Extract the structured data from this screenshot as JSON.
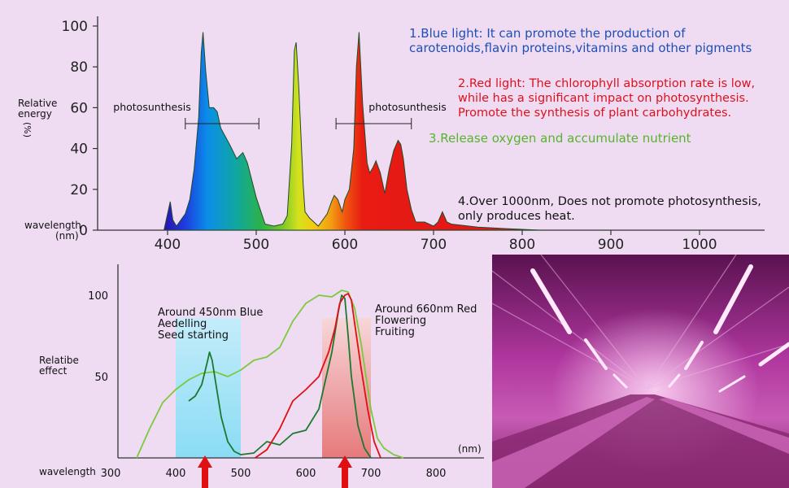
{
  "chart_data": [
    {
      "type": "area",
      "ylabel": "Relative energy (%)",
      "ylabel_lines": [
        "Relative",
        "energy"
      ],
      "ylabel_unit": "(%)",
      "xlabel": "wavelength (nm)",
      "xlabel_lines": [
        "wavelength",
        "(nm)"
      ],
      "y_ticks": [
        0,
        20,
        40,
        60,
        80,
        100
      ],
      "x_ticks": [
        400,
        500,
        600,
        700,
        800,
        900,
        1000
      ],
      "xlim": [
        300,
        1090
      ],
      "ylim": [
        0,
        100
      ],
      "x": [
        396,
        400,
        403,
        406,
        410,
        420,
        425,
        430,
        435,
        438,
        440,
        443,
        447,
        452,
        456,
        460,
        470,
        478,
        485,
        490,
        500,
        510,
        520,
        530,
        535,
        540,
        543,
        545,
        548,
        553,
        555,
        560,
        570,
        580,
        585,
        588,
        592,
        597,
        600,
        605,
        610,
        613,
        616,
        620,
        625,
        628,
        632,
        635,
        640,
        645,
        650,
        655,
        660,
        663,
        666,
        670,
        675,
        680,
        690,
        700,
        705,
        710,
        715,
        720,
        750,
        780,
        800,
        820
      ],
      "y": [
        0,
        8,
        14,
        5,
        2,
        8,
        15,
        30,
        55,
        87,
        97,
        78,
        60,
        60,
        58,
        50,
        42,
        35,
        38,
        33,
        16,
        3,
        2,
        3,
        7,
        42,
        88,
        92,
        70,
        22,
        9,
        6,
        2,
        8,
        14,
        17,
        15,
        9,
        15,
        20,
        40,
        80,
        97,
        62,
        33,
        28,
        31,
        34,
        28,
        18,
        30,
        39,
        44,
        42,
        35,
        20,
        10,
        4,
        4,
        2,
        4,
        9,
        4,
        3,
        1.5,
        0.8,
        0.4,
        0
      ]
    },
    {
      "type": "line",
      "ylabel": "Relatibe effect",
      "ylabel_lines": [
        "Relatibe",
        "effect"
      ],
      "xlabel": "wavelength",
      "x_unit": "(nm)",
      "y_ticks": [
        50,
        100
      ],
      "x_ticks": [
        300,
        400,
        500,
        600,
        700,
        800
      ],
      "xlim": [
        300,
        820
      ],
      "ylim": [
        0,
        110
      ],
      "series": [
        {
          "color": "#7bc93e",
          "x": [
            340,
            360,
            380,
            400,
            420,
            440,
            460,
            480,
            500,
            520,
            540,
            560,
            580,
            600,
            620,
            640,
            655,
            665,
            675,
            685,
            700,
            710,
            720,
            735,
            750
          ],
          "y": [
            0,
            18,
            34,
            42,
            48,
            52,
            53,
            50,
            54,
            60,
            62,
            68,
            84,
            95,
            100,
            99,
            103,
            102,
            92,
            70,
            30,
            12,
            6,
            2,
            0
          ]
        },
        {
          "color": "#1c7a2e",
          "x": [
            420,
            430,
            440,
            448,
            452,
            456,
            462,
            470,
            480,
            490,
            500,
            520,
            540,
            560,
            580,
            600,
            620,
            640,
            650,
            655,
            660,
            665,
            670,
            680,
            690,
            700
          ],
          "y": [
            35,
            38,
            45,
            58,
            65,
            60,
            45,
            25,
            10,
            4,
            2,
            3,
            10,
            8,
            15,
            17,
            30,
            65,
            90,
            100,
            98,
            75,
            50,
            20,
            6,
            0
          ]
        },
        {
          "color": "#e01010",
          "x": [
            522,
            540,
            560,
            580,
            600,
            620,
            635,
            645,
            652,
            660,
            665,
            670,
            676,
            685,
            695,
            705,
            715
          ],
          "y": [
            0,
            5,
            18,
            35,
            42,
            50,
            65,
            80,
            95,
            100,
            101,
            97,
            80,
            55,
            30,
            10,
            0
          ]
        }
      ],
      "bands": [
        {
          "from": 400,
          "to": 500,
          "color": "#8fd8f0",
          "labels": [
            "Around 450nm Blue",
            "Aedelling",
            "Seed starting"
          ],
          "arrow_at": 445
        },
        {
          "from": 625,
          "to": 700,
          "color": "#e58c8c",
          "labels": [
            "Around 660nm Red",
            "Flowering",
            "Fruiting"
          ],
          "arrow_at": 660
        }
      ]
    }
  ],
  "brackets": [
    {
      "label": "photosunthesis",
      "from": 420,
      "to": 503
    },
    {
      "label": "photosunthesis",
      "from": 590,
      "to": 675
    }
  ],
  "notes": {
    "blue": [
      "1.Blue light: It can promote the production of",
      "carotenoids,flavin proteins,vitamins and other pigments"
    ],
    "red": [
      "2.Red light: The chlorophyll absorption rate is low,",
      "while has a significant impact on photosynthesis.",
      "Promote the synthesis of plant carbohydrates."
    ],
    "green": [
      "3.Release oxygen and accumulate nutrient"
    ],
    "heat": [
      "4.Over 1000nm, Does not promote photosynthesis,",
      "only produces heat."
    ]
  },
  "colors": {
    "background": "#efdcf3",
    "blue_note": "#1f4fb5",
    "red_note": "#e0101a",
    "green_note": "#55b52a",
    "heat_note": "#111111",
    "arrow": "#e01010",
    "photo_glow": "#b0379f"
  }
}
